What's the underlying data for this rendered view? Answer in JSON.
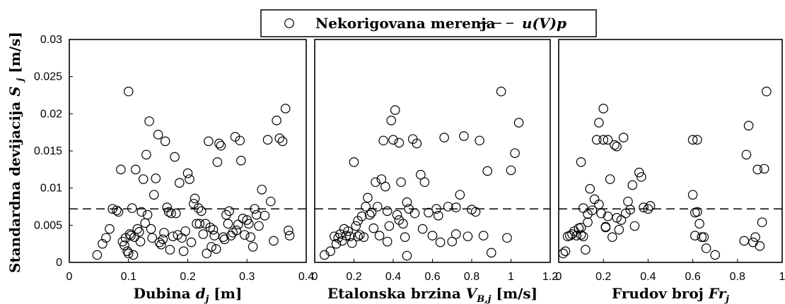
{
  "legend": {
    "entry_scatter": "Nekorigovana merenja",
    "entry_line": "u(V)p"
  },
  "ylabel": "Standardna devijacija S_j [m/s]",
  "chart_data": [
    {
      "type": "scatter",
      "xlabel": "Dubina d_j [m]",
      "ylabel": "Standardna devijacija S_j [m/s]",
      "xlim": [
        0,
        0.4
      ],
      "ylim": [
        0,
        0.03
      ],
      "xticks": [
        "0",
        "0.1",
        "0.2",
        "0.3",
        "0.4"
      ],
      "yticks": [
        "0",
        "0.005",
        "0.01",
        "0.015",
        "0.02",
        "0.025",
        "0.03"
      ],
      "reference_line_y": 0.0072,
      "series": [
        {
          "name": "Nekorigovana merenja",
          "x": [
            0.047,
            0.056,
            0.062,
            0.068,
            0.073,
            0.08,
            0.083,
            0.087,
            0.09,
            0.093,
            0.095,
            0.098,
            0.1,
            0.1,
            0.102,
            0.104,
            0.106,
            0.108,
            0.11,
            0.112,
            0.115,
            0.118,
            0.12,
            0.122,
            0.125,
            0.128,
            0.13,
            0.132,
            0.135,
            0.138,
            0.14,
            0.143,
            0.146,
            0.15,
            0.152,
            0.155,
            0.158,
            0.16,
            0.162,
            0.165,
            0.168,
            0.17,
            0.172,
            0.175,
            0.178,
            0.18,
            0.183,
            0.186,
            0.19,
            0.193,
            0.196,
            0.2,
            0.203,
            0.206,
            0.21,
            0.212,
            0.215,
            0.218,
            0.22,
            0.223,
            0.226,
            0.23,
            0.232,
            0.235,
            0.238,
            0.24,
            0.243,
            0.245,
            0.248,
            0.25,
            0.253,
            0.256,
            0.26,
            0.262,
            0.265,
            0.268,
            0.27,
            0.273,
            0.276,
            0.28,
            0.282,
            0.285,
            0.288,
            0.29,
            0.293,
            0.296,
            0.3,
            0.303,
            0.306,
            0.31,
            0.313,
            0.316,
            0.32,
            0.325,
            0.33,
            0.335,
            0.34,
            0.345,
            0.35,
            0.355,
            0.36,
            0.365,
            0.37,
            0.372
          ],
          "y": [
            0.001,
            0.0025,
            0.0033,
            0.0045,
            0.0072,
            0.007,
            0.0068,
            0.0125,
            0.0028,
            0.0023,
            0.0033,
            0.0015,
            0.0012,
            0.023,
            0.0038,
            0.0036,
            0.0073,
            0.001,
            0.0034,
            0.0125,
            0.0045,
            0.0041,
            0.0028,
            0.0068,
            0.0112,
            0.0053,
            0.0145,
            0.0064,
            0.019,
            0.0045,
            0.0033,
            0.0091,
            0.0113,
            0.0172,
            0.0027,
            0.0024,
            0.0031,
            0.004,
            0.0163,
            0.0074,
            0.0068,
            0.0017,
            0.0066,
            0.0035,
            0.0142,
            0.0066,
            0.0037,
            0.0107,
            0.0033,
            0.0015,
            0.0042,
            0.012,
            0.0112,
            0.0027,
            0.0079,
            0.0086,
            0.0052,
            0.0073,
            0.0052,
            0.0069,
            0.0038,
            0.0052,
            0.0012,
            0.0163,
            0.0047,
            0.0021,
            0.0044,
            0.0036,
            0.0018,
            0.0135,
            0.016,
            0.0157,
            0.0034,
            0.0031,
            0.0064,
            0.0052,
            0.0069,
            0.0036,
            0.004,
            0.0169,
            0.0043,
            0.0051,
            0.0164,
            0.0137,
            0.0059,
            0.0037,
            0.0057,
            0.0052,
            0.0034,
            0.0021,
            0.0072,
            0.0064,
            0.0049,
            0.0098,
            0.0063,
            0.0165,
            0.0082,
            0.0029,
            0.0191,
            0.0167,
            0.0163,
            0.0207,
            0.0043,
            0.0036
          ]
        }
      ]
    },
    {
      "type": "scatter",
      "xlabel": "Etalonska brzina V_B,j [m/s]",
      "ylabel": "",
      "xlim": [
        0,
        1.2
      ],
      "ylim": [
        0,
        0.03
      ],
      "xticks": [
        "0",
        "0.2",
        "0.4",
        "0.6",
        "0.8",
        "1",
        "1.2"
      ],
      "reference_line_y": 0.0072,
      "series": [
        {
          "name": "Nekorigovana merenja",
          "x": [
            0.05,
            0.08,
            0.1,
            0.11,
            0.12,
            0.13,
            0.14,
            0.15,
            0.16,
            0.17,
            0.18,
            0.19,
            0.2,
            0.21,
            0.22,
            0.23,
            0.24,
            0.25,
            0.26,
            0.27,
            0.28,
            0.29,
            0.3,
            0.31,
            0.32,
            0.33,
            0.34,
            0.35,
            0.36,
            0.37,
            0.38,
            0.39,
            0.4,
            0.41,
            0.42,
            0.43,
            0.44,
            0.45,
            0.46,
            0.47,
            0.48,
            0.5,
            0.52,
            0.54,
            0.56,
            0.58,
            0.6,
            0.62,
            0.64,
            0.66,
            0.68,
            0.7,
            0.72,
            0.74,
            0.76,
            0.78,
            0.8,
            0.82,
            0.84,
            0.86,
            0.88,
            0.9,
            0.95,
            0.98,
            1.0,
            1.02,
            1.04,
            0.22,
            0.37,
            0.43,
            0.47,
            0.51,
            0.55,
            0.63,
            0.72
          ],
          "y": [
            0.001,
            0.0015,
            0.0035,
            0.0025,
            0.0033,
            0.0038,
            0.0029,
            0.0045,
            0.0036,
            0.0042,
            0.0035,
            0.0026,
            0.0135,
            0.0049,
            0.0056,
            0.0037,
            0.0062,
            0.0034,
            0.0075,
            0.0087,
            0.0064,
            0.0067,
            0.0046,
            0.0108,
            0.0075,
            0.0036,
            0.0112,
            0.0164,
            0.0102,
            0.0069,
            0.0049,
            0.0191,
            0.0165,
            0.0205,
            0.0064,
            0.0161,
            0.0108,
            0.0052,
            0.0034,
            0.0009,
            0.0072,
            0.0166,
            0.016,
            0.0118,
            0.0108,
            0.0067,
            0.0036,
            0.0072,
            0.0027,
            0.0168,
            0.0075,
            0.0028,
            0.0038,
            0.0091,
            0.017,
            0.0035,
            0.0071,
            0.0068,
            0.0164,
            0.0036,
            0.0123,
            0.0013,
            0.023,
            0.0033,
            0.0124,
            0.0147,
            0.0188,
            0.0035,
            0.0028,
            0.0057,
            0.0081,
            0.0066,
            0.0045,
            0.0063,
            0.0074
          ]
        }
      ]
    },
    {
      "type": "scatter",
      "xlabel": "Frudov broj Fr_j",
      "ylabel": "",
      "xlim": [
        0,
        1
      ],
      "ylim": [
        0,
        0.03
      ],
      "xticks": [
        "0",
        "0.2",
        "0.4",
        "0.6",
        "0.8",
        "1"
      ],
      "reference_line_y": 0.0072,
      "series": [
        {
          "name": "Nekorigovana merenja",
          "x": [
            0.02,
            0.03,
            0.04,
            0.05,
            0.06,
            0.07,
            0.08,
            0.09,
            0.1,
            0.1,
            0.11,
            0.12,
            0.13,
            0.13,
            0.14,
            0.15,
            0.16,
            0.17,
            0.18,
            0.18,
            0.19,
            0.2,
            0.2,
            0.21,
            0.22,
            0.22,
            0.23,
            0.24,
            0.25,
            0.26,
            0.27,
            0.28,
            0.29,
            0.3,
            0.31,
            0.32,
            0.33,
            0.34,
            0.36,
            0.37,
            0.38,
            0.4,
            0.41,
            0.6,
            0.6,
            0.61,
            0.61,
            0.62,
            0.63,
            0.64,
            0.65,
            0.66,
            0.7,
            0.83,
            0.84,
            0.85,
            0.87,
            0.88,
            0.89,
            0.9,
            0.91,
            0.92,
            0.93,
            0.1,
            0.11,
            0.21,
            0.26,
            0.62
          ],
          "y": [
            0.0012,
            0.0015,
            0.0035,
            0.0036,
            0.0038,
            0.0042,
            0.0036,
            0.0046,
            0.0037,
            0.0135,
            0.0073,
            0.0017,
            0.0065,
            0.0054,
            0.0099,
            0.007,
            0.0085,
            0.0165,
            0.0188,
            0.0078,
            0.0066,
            0.0165,
            0.0207,
            0.0047,
            0.0062,
            0.0165,
            0.0112,
            0.0034,
            0.0158,
            0.0156,
            0.0044,
            0.0057,
            0.0168,
            0.0066,
            0.0082,
            0.0071,
            0.0104,
            0.0049,
            0.0121,
            0.0115,
            0.0074,
            0.0072,
            0.0076,
            0.0165,
            0.0091,
            0.0067,
            0.0036,
            0.0165,
            0.0052,
            0.0034,
            0.0034,
            0.0019,
            0.001,
            0.0029,
            0.0145,
            0.0184,
            0.0027,
            0.0034,
            0.0125,
            0.0022,
            0.0054,
            0.0126,
            0.023,
            0.0047,
            0.0035,
            0.0048,
            0.006,
            0.0068
          ]
        }
      ]
    }
  ]
}
